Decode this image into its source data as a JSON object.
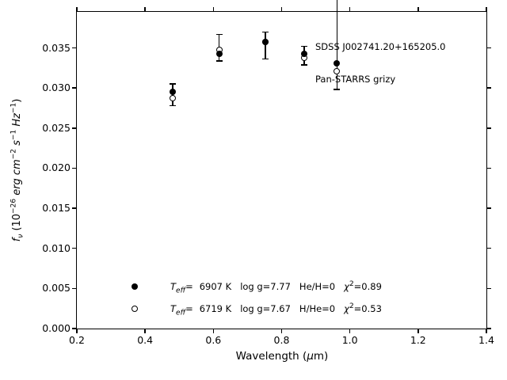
{
  "figure": {
    "background": "#ffffff",
    "foreground": "#000000"
  },
  "axis": {
    "xlabel_parts": [
      {
        "t": "Wavelength (",
        "style": "normal"
      },
      {
        "t": "μ",
        "style": "italic"
      },
      {
        "t": "m)",
        "style": "normal"
      }
    ],
    "ylabel_parts": [
      {
        "t": "f",
        "style": "italic"
      },
      {
        "t": "ν",
        "style": "italic-sub"
      },
      {
        "t": " (10",
        "style": "normal"
      },
      {
        "t": "−26",
        "style": "sup"
      },
      {
        "t": " erg cm",
        "style": "italic"
      },
      {
        "t": "−2",
        "style": "sup"
      },
      {
        "t": " s",
        "style": "italic"
      },
      {
        "t": "−1",
        "style": "sup"
      },
      {
        "t": " Hz",
        "style": "italic"
      },
      {
        "t": "−1",
        "style": "sup"
      },
      {
        "t": ")",
        "style": "normal"
      }
    ]
  },
  "legend": {
    "rows": [
      {
        "marker": "filled-circle",
        "teff_sym": "T",
        "teff_sub": "eff",
        "eq": "=",
        "teff_value": "6907 K",
        "logg": "log g=7.77",
        "composition": "He/H=0",
        "chi_sym": "χ",
        "chi_sup": "2",
        "chi_value": "=0.89"
      },
      {
        "marker": "open-circle",
        "teff_sym": "T",
        "teff_sub": "eff",
        "eq": "=",
        "teff_value": "6719 K",
        "logg": "log g=7.67",
        "composition": "H/He=0",
        "chi_sym": "χ",
        "chi_sup": "2",
        "chi_value": "=0.53"
      }
    ]
  },
  "chart_data": {
    "type": "scatter",
    "title": "",
    "xlabel": "Wavelength (μm)",
    "ylabel": "fν (10−26 erg cm−2 s−1 Hz−1)",
    "xlim": [
      0.2,
      1.4
    ],
    "ylim": [
      0,
      0.0395
    ],
    "grid": false,
    "legend_position": "lower center",
    "annotation": {
      "line1": "SDSS J002741.20+165205.0",
      "line2": "Pan-STARRS grizy"
    },
    "bands": [
      "g",
      "r",
      "i",
      "z",
      "y"
    ],
    "x": [
      0.481,
      0.617,
      0.752,
      0.866,
      0.962
    ],
    "x_ticks": [
      {
        "value": 0.2,
        "label": "0.2"
      },
      {
        "value": 0.4,
        "label": "0.4"
      },
      {
        "value": 0.6,
        "label": "0.6"
      },
      {
        "value": 0.8,
        "label": "0.8"
      },
      {
        "value": 1.0,
        "label": "1.0"
      },
      {
        "value": 1.2,
        "label": "1.2"
      },
      {
        "value": 1.4,
        "label": "1.4"
      }
    ],
    "y_ticks": [
      {
        "value": 0.0,
        "label": "0.000"
      },
      {
        "value": 0.005,
        "label": "0.005"
      },
      {
        "value": 0.01,
        "label": "0.010"
      },
      {
        "value": 0.015,
        "label": "0.015"
      },
      {
        "value": 0.02,
        "label": "0.020"
      },
      {
        "value": 0.025,
        "label": "0.025"
      },
      {
        "value": 0.03,
        "label": "0.030"
      },
      {
        "value": 0.035,
        "label": "0.035"
      }
    ],
    "series": [
      {
        "name": "Teff = 6907 K, log g = 7.77, He/H = 0, χ² = 0.89",
        "marker": "filled-circle",
        "values": [
          0.0295,
          0.0343,
          0.0357,
          0.0343,
          0.0331
        ]
      },
      {
        "name": "Teff = 6719 K, log g = 7.67, H/He = 0, χ² = 0.53",
        "marker": "open-circle",
        "values": [
          0.0287,
          0.0348,
          0.0357,
          0.0338,
          0.0321
        ]
      }
    ],
    "errorbars": [
      {
        "lo": 0.0278,
        "hi": 0.0305,
        "cap_top": true,
        "cap_bottom": true
      },
      {
        "lo": 0.0334,
        "hi": 0.0367,
        "cap_top": true,
        "cap_bottom": true
      },
      {
        "lo": 0.0336,
        "hi": 0.037,
        "cap_top": true,
        "cap_bottom": true
      },
      {
        "lo": 0.0329,
        "hi": 0.0352,
        "cap_top": true,
        "cap_bottom": true
      },
      {
        "lo": 0.0298,
        "hi": 0.041,
        "cap_top": false,
        "cap_bottom": true
      }
    ]
  }
}
